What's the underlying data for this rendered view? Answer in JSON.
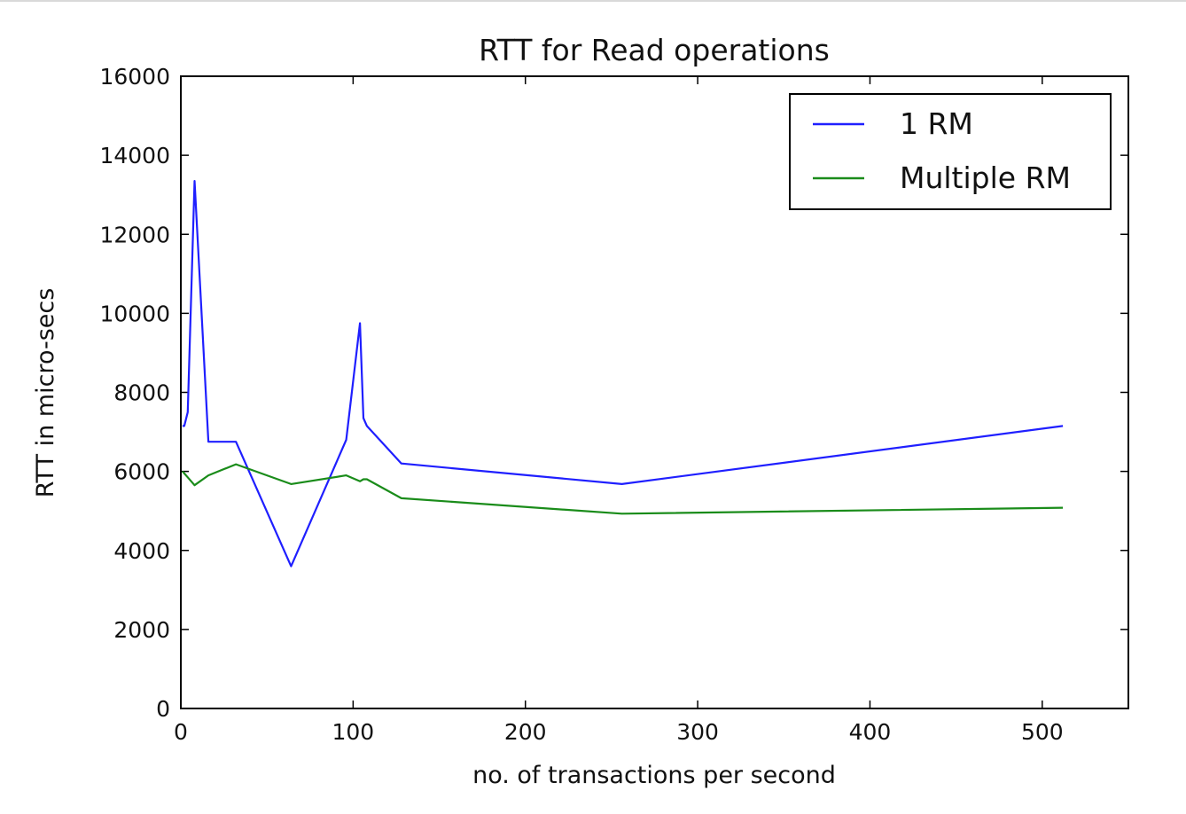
{
  "chart_data": {
    "type": "line",
    "title": "RTT for Read operations",
    "xlabel": "no. of transactions per second",
    "ylabel": "RTT in micro-secs",
    "xlim": [
      0,
      550
    ],
    "ylim": [
      0,
      16000
    ],
    "xticks": [
      0,
      100,
      200,
      300,
      400,
      500
    ],
    "yticks": [
      0,
      2000,
      4000,
      6000,
      8000,
      10000,
      12000,
      14000,
      16000
    ],
    "grid": false,
    "legend_position": "top-right",
    "series": [
      {
        "name": "1 RM",
        "color": "#1f1fff",
        "x": [
          1,
          2,
          4,
          8,
          16,
          32,
          64,
          96,
          104,
          106,
          108,
          128,
          256,
          512
        ],
        "y": [
          7150,
          7150,
          7500,
          13350,
          6750,
          6750,
          3600,
          6800,
          9750,
          7350,
          7150,
          6200,
          5680,
          7150
        ]
      },
      {
        "name": "Multiple RM",
        "color": "#1a8c1a",
        "x": [
          1,
          2,
          4,
          8,
          16,
          32,
          64,
          96,
          104,
          106,
          108,
          128,
          256,
          512
        ],
        "y": [
          6000,
          5950,
          5850,
          5650,
          5900,
          6180,
          5680,
          5900,
          5750,
          5800,
          5800,
          5320,
          4930,
          5080
        ]
      }
    ]
  }
}
